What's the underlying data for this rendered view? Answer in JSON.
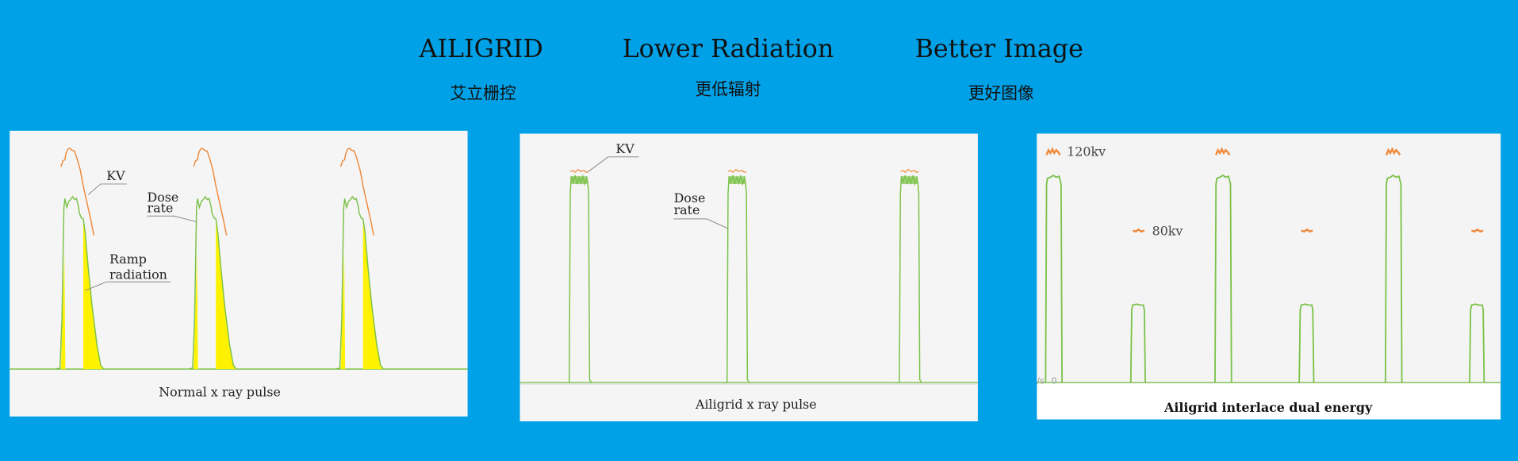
{
  "header": {
    "items": [
      {
        "title": "AILIGRID",
        "subtitle": "艾立栅控"
      },
      {
        "title": "Lower Radiation",
        "subtitle": "更低辐射"
      },
      {
        "title": "Better Image",
        "subtitle": "更好图像"
      }
    ]
  },
  "colors": {
    "background": "#00a1e6",
    "dose_rate": "#7cc24a",
    "kv": "#f08a3c",
    "ramp_radiation": "#fff200",
    "panel": "#f5f5f5"
  },
  "panels": [
    {
      "caption": "Normal x ray pulse",
      "labels": {
        "kv": "KV",
        "dose_line1": "Dose",
        "dose_line2": "rate",
        "ramp_line1": "Ramp",
        "ramp_line2": "radiation"
      }
    },
    {
      "caption": "Ailigrid x ray pulse",
      "labels": {
        "kv": "KV",
        "dose_line1": "Dose",
        "dose_line2": "rate"
      }
    },
    {
      "caption": "Ailigrid interlace dual energy",
      "labels": {
        "high": "120kv",
        "low": "80kv",
        "axis_unit": "/s",
        "axis_zero": "0"
      }
    }
  ]
}
